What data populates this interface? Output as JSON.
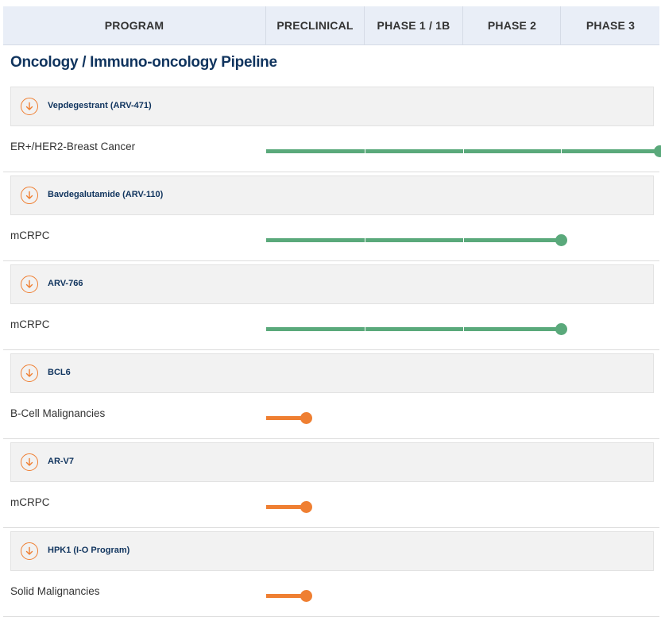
{
  "header": {
    "program": "PROGRAM",
    "phases": [
      "PRECLINICAL",
      "PHASE 1 / 1B",
      "PHASE 2",
      "PHASE 3"
    ]
  },
  "section_title": "Oncology / Immuno-oncology Pipeline",
  "colors": {
    "green": "#5aa97b",
    "orange": "#ef7f32",
    "navy": "#10345e"
  },
  "programs": [
    {
      "name": "Vepdegestrant (ARV-471)",
      "indication": "ER+/HER2-Breast Cancer",
      "phase_progress": 4,
      "color": "green"
    },
    {
      "name": "Bavdegalutamide (ARV-110)",
      "indication": "mCRPC",
      "phase_progress": 3,
      "color": "green"
    },
    {
      "name": "ARV-766",
      "indication": "mCRPC",
      "phase_progress": 3,
      "color": "green"
    },
    {
      "name": "BCL6",
      "indication": "B-Cell Malignancies",
      "phase_progress": 0.4,
      "color": "orange"
    },
    {
      "name": "AR-V7",
      "indication": "mCRPC",
      "phase_progress": 0.4,
      "color": "orange"
    },
    {
      "name": "HPK1 (I-O Program)",
      "indication": "Solid Malignancies",
      "phase_progress": 0.4,
      "color": "orange"
    }
  ]
}
